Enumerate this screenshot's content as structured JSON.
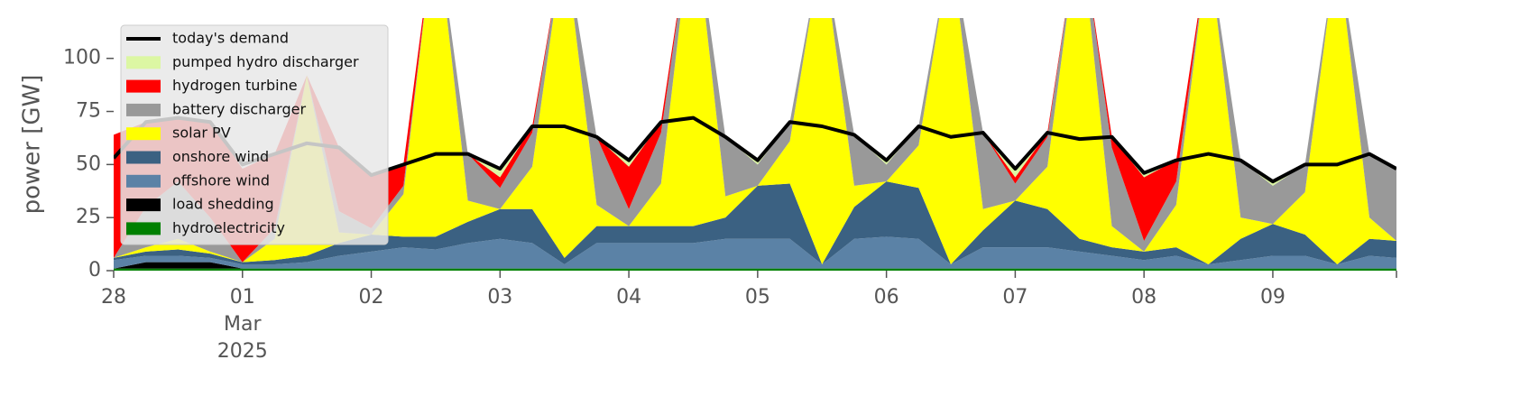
{
  "chart_data": {
    "type": "area",
    "ylabel": "power [GW]",
    "x": [
      0,
      0.25,
      0.5,
      0.75,
      1,
      1.25,
      1.5,
      1.75,
      2,
      2.25,
      2.5,
      2.75,
      3,
      3.25,
      3.5,
      3.75,
      4,
      4.25,
      4.5,
      4.75,
      5,
      5.25,
      5.5,
      5.75,
      6,
      6.25,
      6.5,
      6.75,
      7,
      7.25,
      7.5,
      7.75,
      8,
      8.25,
      8.5,
      8.75,
      9,
      9.25,
      9.5,
      9.75,
      9.96
    ],
    "xlim": [
      0,
      9.96
    ],
    "xticks": [
      {
        "value": 0,
        "label": "28"
      },
      {
        "value": 1,
        "label": "01"
      },
      {
        "value": 2,
        "label": "02"
      },
      {
        "value": 3,
        "label": "03"
      },
      {
        "value": 4,
        "label": "04"
      },
      {
        "value": 5,
        "label": "05"
      },
      {
        "value": 6,
        "label": "06"
      },
      {
        "value": 7,
        "label": "07"
      },
      {
        "value": 8,
        "label": "08"
      },
      {
        "value": 9,
        "label": "09"
      }
    ],
    "xtick_month": "Mar",
    "xtick_year": "2025",
    "ylim": [
      0,
      119
    ],
    "yticks": [
      0,
      25,
      50,
      75,
      100
    ],
    "legend": "upper left",
    "series": [
      {
        "name": "today's demand",
        "color": "#000000",
        "style": "line",
        "values": [
          53,
          70,
          72,
          70,
          50,
          55,
          60,
          58,
          45,
          50,
          55,
          55,
          48,
          68,
          68,
          63,
          52,
          70,
          72,
          63,
          52,
          70,
          68,
          64,
          52,
          68,
          63,
          65,
          48,
          65,
          62,
          63,
          46,
          52,
          55,
          52,
          42,
          50,
          50,
          55,
          48
        ]
      },
      {
        "name": "pumped hydro discharger",
        "color": "#dcf7a3",
        "values": [
          0,
          0,
          0,
          0,
          0,
          0,
          0,
          0,
          0,
          0,
          0,
          0,
          3,
          0,
          0,
          0,
          3,
          0,
          0,
          0,
          3,
          0,
          0,
          0,
          2,
          0,
          0,
          0,
          3,
          0,
          0,
          0,
          2,
          0,
          0,
          0,
          2,
          0,
          0,
          0,
          0
        ]
      },
      {
        "name": "hydrogen turbine",
        "color": "#ff0000",
        "values": [
          58,
          40,
          30,
          45,
          44,
          35,
          0,
          30,
          25,
          10,
          0,
          0,
          5,
          3,
          0,
          0,
          20,
          5,
          0,
          0,
          0,
          0,
          0,
          0,
          0,
          0,
          0,
          0,
          3,
          2,
          0,
          5,
          30,
          10,
          0,
          0,
          0,
          0,
          0,
          0,
          0
        ]
      },
      {
        "name": "battery discharger",
        "color": "#999999",
        "values": [
          0,
          19,
          27,
          16,
          0,
          5,
          0,
          10,
          3,
          4,
          0,
          22,
          10,
          16,
          0,
          32,
          8,
          24,
          0,
          28,
          10,
          9,
          0,
          24,
          8,
          9,
          0,
          36,
          8,
          14,
          0,
          37,
          5,
          11,
          0,
          27,
          18,
          13,
          0,
          30,
          34
        ]
      },
      {
        "name": "solar PV",
        "color": "#ffff00",
        "values": [
          0,
          2,
          5,
          1,
          0,
          10,
          85,
          5,
          0,
          20,
          150,
          10,
          0,
          20,
          150,
          10,
          0,
          20,
          150,
          10,
          0,
          20,
          150,
          10,
          0,
          20,
          150,
          10,
          0,
          20,
          150,
          10,
          0,
          20,
          150,
          10,
          0,
          20,
          150,
          10,
          0
        ]
      },
      {
        "name": "onshore wind",
        "color": "#3b6182",
        "values": [
          1,
          2,
          3,
          2,
          1,
          2,
          3,
          6,
          8,
          5,
          6,
          10,
          14,
          16,
          3,
          8,
          8,
          8,
          8,
          10,
          25,
          26,
          0,
          15,
          26,
          24,
          0,
          8,
          22,
          18,
          6,
          4,
          4,
          4,
          0,
          10,
          15,
          10,
          0,
          8,
          8
        ]
      },
      {
        "name": "offshore wind",
        "color": "#5b82a6",
        "values": [
          4,
          3,
          3,
          2,
          2,
          2,
          3,
          6,
          8,
          10,
          9,
          12,
          14,
          12,
          2,
          12,
          12,
          12,
          12,
          14,
          14,
          14,
          2,
          14,
          15,
          14,
          2,
          10,
          10,
          10,
          8,
          6,
          4,
          6,
          2,
          4,
          6,
          6,
          2,
          6,
          5
        ]
      },
      {
        "name": "load shedding",
        "color": "#000000",
        "values": [
          0,
          3,
          3,
          3,
          0,
          0,
          0,
          0,
          0,
          0,
          0,
          0,
          0,
          0,
          0,
          0,
          0,
          0,
          0,
          0,
          0,
          0,
          0,
          0,
          0,
          0,
          0,
          0,
          0,
          0,
          0,
          0,
          0,
          0,
          0,
          0,
          0,
          0,
          0,
          0,
          0
        ]
      },
      {
        "name": "hydroelectricity",
        "color": "#008000",
        "values": [
          1,
          1,
          1,
          1,
          1,
          1,
          1,
          1,
          1,
          1,
          1,
          1,
          1,
          1,
          1,
          1,
          1,
          1,
          1,
          1,
          1,
          1,
          1,
          1,
          1,
          1,
          1,
          1,
          1,
          1,
          1,
          1,
          1,
          1,
          1,
          1,
          1,
          1,
          1,
          1,
          1
        ]
      }
    ]
  }
}
